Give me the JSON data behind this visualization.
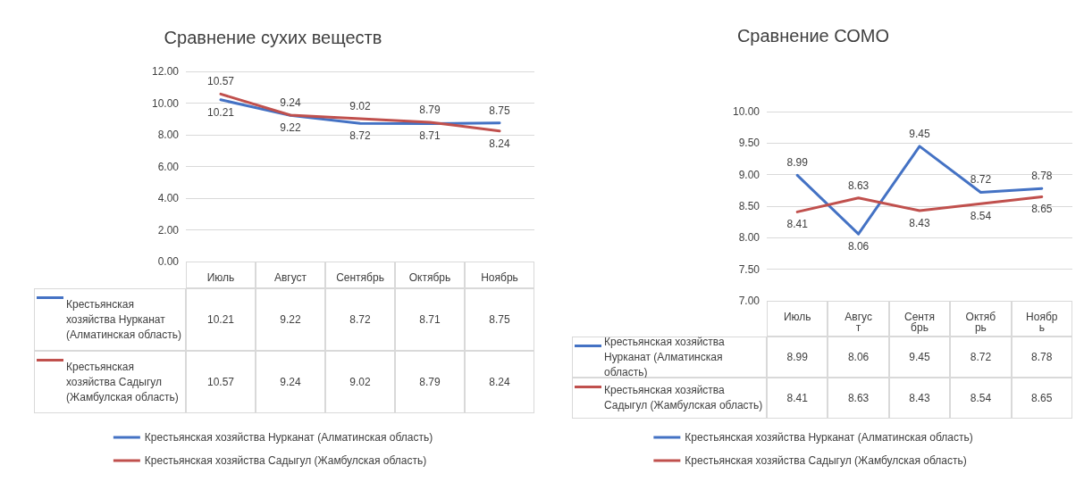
{
  "chart_data": [
    {
      "type": "line",
      "title": "Сравнение сухих веществ",
      "categories": [
        "Июль",
        "Август",
        "Сентябрь",
        "Октябрь",
        "Ноябрь"
      ],
      "series": [
        {
          "name": "Крестьянская хозяйства Нурканат (Алматинская область)",
          "color": "#4472c4",
          "values": [
            10.21,
            9.22,
            8.72,
            8.71,
            8.75
          ],
          "value_labels": [
            "10.21",
            "9.22",
            "8.72",
            "8.71",
            "8.75"
          ]
        },
        {
          "name": "Крестьянская хозяйства Садыгул (Жамбулская область)",
          "color": "#c0504d",
          "values": [
            10.57,
            9.24,
            9.02,
            8.79,
            8.24
          ],
          "value_labels": [
            "10.57",
            "9.24",
            "9.02",
            "8.79",
            "8.24"
          ]
        }
      ],
      "ylim": [
        0,
        12
      ],
      "yticks": [
        {
          "value": 0,
          "label": "0.00"
        },
        {
          "value": 2,
          "label": "2.00"
        },
        {
          "value": 4,
          "label": "4.00"
        },
        {
          "value": 6,
          "label": "6.00"
        },
        {
          "value": 8,
          "label": "8.00"
        },
        {
          "value": 10,
          "label": "10.00"
        },
        {
          "value": 12,
          "label": "12.00"
        }
      ],
      "grid": "y",
      "legend": "bottom",
      "data_labels": true,
      "marker": "none",
      "line_style": "solid"
    },
    {
      "type": "line",
      "title": "Сравнение СОМО",
      "categories": [
        "Июль",
        "Август",
        "Сентябрь",
        "Октябрь",
        "Ноябрь"
      ],
      "series": [
        {
          "name": "Крестьянская хозяйства Нурканат (Алматинская область)",
          "color": "#4472c4",
          "values": [
            8.99,
            8.06,
            9.45,
            8.72,
            8.78
          ],
          "value_labels": [
            "8.99",
            "8.06",
            "9.45",
            "8.72",
            "8.78"
          ]
        },
        {
          "name": "Крестьянская хозяйства Садыгул (Жамбулская область)",
          "color": "#c0504d",
          "values": [
            8.41,
            8.63,
            8.43,
            8.54,
            8.65
          ],
          "value_labels": [
            "8.41",
            "8.63",
            "8.43",
            "8.54",
            "8.65"
          ]
        }
      ],
      "ylim": [
        7,
        10
      ],
      "yticks": [
        {
          "value": 7,
          "label": "7.00"
        },
        {
          "value": 7.5,
          "label": "7.50"
        },
        {
          "value": 8,
          "label": "8.00"
        },
        {
          "value": 8.5,
          "label": "8.50"
        },
        {
          "value": 9,
          "label": "9.00"
        },
        {
          "value": 9.5,
          "label": "9.50"
        },
        {
          "value": 10,
          "label": "10.00"
        }
      ],
      "grid": "y",
      "legend": "bottom",
      "data_labels": true,
      "marker": "none",
      "line_style": "solid"
    }
  ]
}
